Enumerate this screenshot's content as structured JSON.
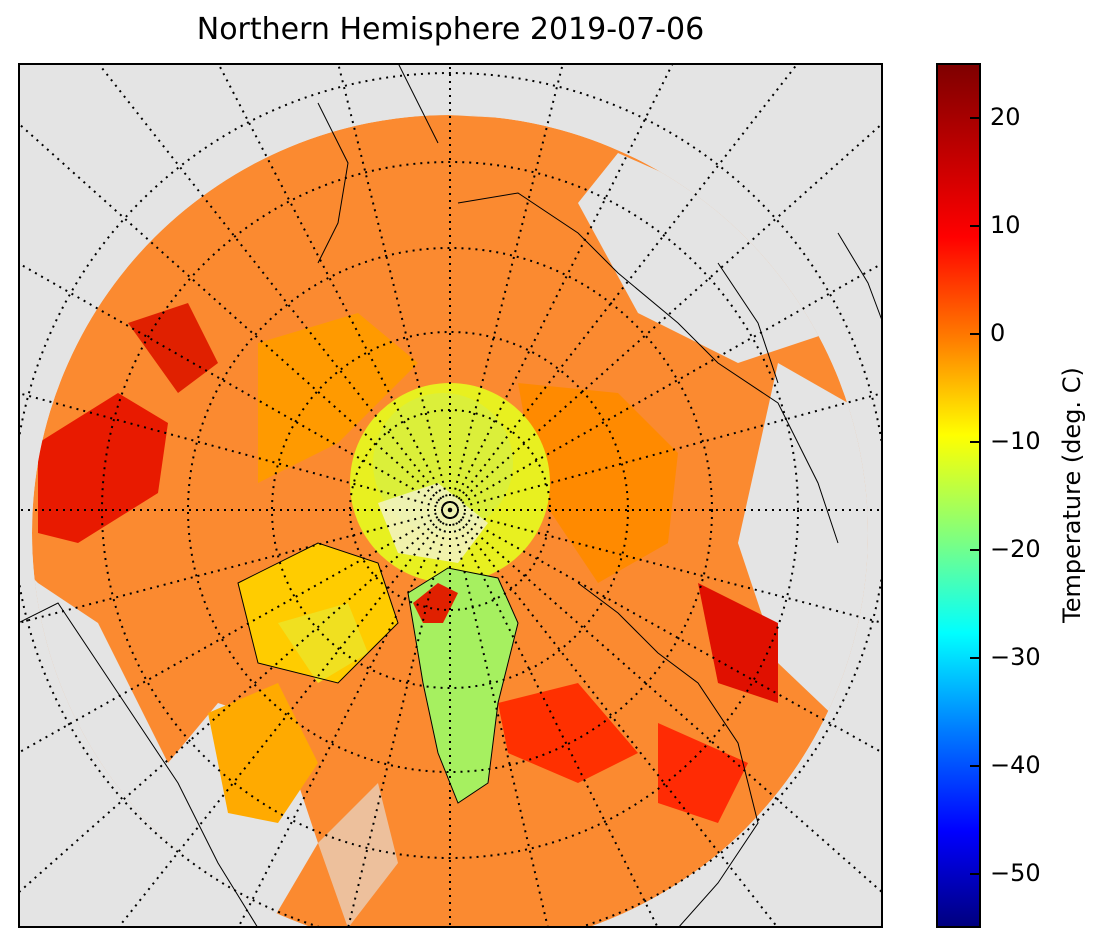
{
  "title": "Northern Hemisphere 2019-07-06",
  "colorbar": {
    "label": "Temperature (deg. C)",
    "ticks": [
      "20",
      "10",
      "0",
      "−10",
      "−20",
      "−30",
      "−40",
      "−50"
    ],
    "range": [
      -55,
      25
    ],
    "colormap": "jet"
  },
  "map": {
    "projection": "north-polar-stereographic",
    "background_color": "#e4e4e4",
    "graticule_style": "dotted",
    "coastline_color": "#000000"
  }
}
